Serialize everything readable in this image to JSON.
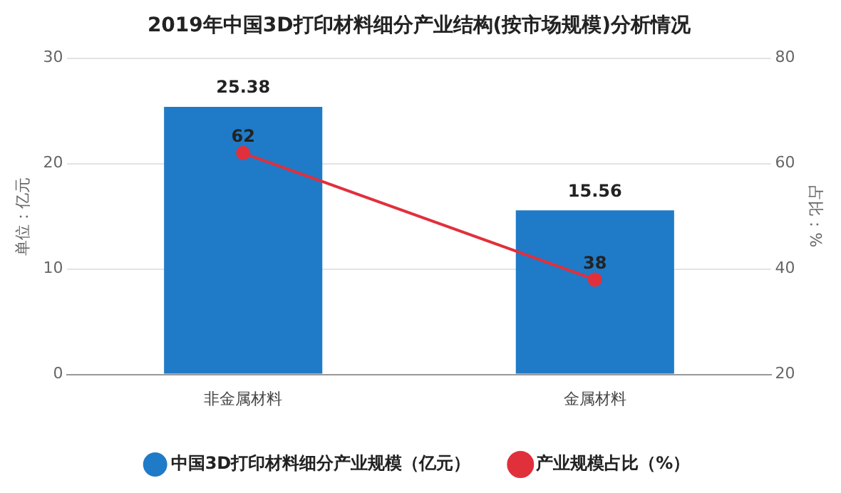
{
  "chart_data": {
    "type": "bar",
    "title": "2019年中国3D打印材料细分产业结构(按市场规模)分析情况",
    "ylabel": "单位：亿元",
    "y2label": "占比：%",
    "categories": [
      "非金属材料",
      "金属材料"
    ],
    "series": [
      {
        "name": "中国3D打印材料细分产业规模（亿元）",
        "color": "#1f7bc7",
        "values": [
          25.38,
          15.56
        ]
      },
      {
        "name": "产业规模占比（%）",
        "type": "line",
        "axis": "y2",
        "color": "#e0303c",
        "values": [
          62,
          38
        ]
      }
    ],
    "ylim": [
      0,
      30
    ],
    "yticks": [
      0,
      10,
      20,
      30
    ],
    "y2lim": [
      20,
      80
    ],
    "y2ticks": [
      20,
      40,
      60,
      80
    ],
    "grid": "y",
    "legend": "bottom",
    "marker": "circle",
    "data_labels": true
  }
}
